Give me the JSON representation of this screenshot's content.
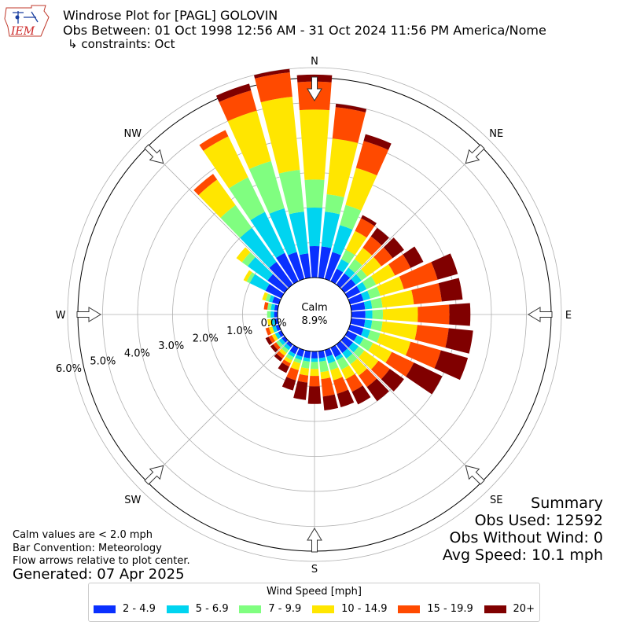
{
  "header": {
    "title": "Windrose Plot for [PAGL] GOLOVIN",
    "obs_between": "Obs Between: 01 Oct 1998 12:56 AM - 31 Oct 2024 11:56 PM America/Nome",
    "constraints": "↳ constraints: Oct",
    "logo_text": "IEM"
  },
  "footer": {
    "calm_note": "Calm values are < 2.0 mph",
    "bar_convention": "Bar Convention: Meteorology",
    "flow_note": "Flow arrows relative to plot center.",
    "generated": "Generated: 07 Apr 2025"
  },
  "summary": {
    "title": "Summary",
    "obs_used": "Obs Used: 12592",
    "obs_without_wind": "Obs Without Wind: 0",
    "avg_speed": "Avg Speed: 10.1 mph"
  },
  "center": {
    "label": "Calm",
    "value": "8.9%"
  },
  "colors": {
    "bins": [
      "#0a30ff",
      "#00d4f0",
      "#80fe80",
      "#ffe600",
      "#ff4a00",
      "#800000"
    ],
    "grid": "#b0b0b0",
    "outline": "#000000"
  },
  "chart_data": {
    "type": "windrose",
    "title": "Windrose Plot for [PAGL] GOLOVIN",
    "direction_labels": [
      "N",
      "NE",
      "E",
      "SE",
      "S",
      "SW",
      "W",
      "NW"
    ],
    "radial_tick_labels": [
      "0.0%",
      "1.0%",
      "2.0%",
      "3.0%",
      "4.0%",
      "5.0%",
      "6.0%"
    ],
    "radial_range": [
      0,
      6.5
    ],
    "grid": true,
    "legend_title": "Wind Speed [mph]",
    "legend_placement": "bottom-center",
    "speed_bins": [
      "2 - 4.9",
      "5 - 6.9",
      "7 - 9.9",
      "10 - 14.9",
      "15 - 19.9",
      "20+"
    ],
    "directions_deg": [
      0,
      10,
      20,
      30,
      40,
      50,
      60,
      70,
      80,
      90,
      100,
      110,
      120,
      130,
      140,
      150,
      160,
      170,
      180,
      190,
      200,
      210,
      220,
      230,
      240,
      250,
      260,
      270,
      280,
      290,
      300,
      310,
      320,
      330,
      340,
      350
    ],
    "cumulative_pct": [
      [
        0.9,
        2.0,
        2.8,
        4.8,
        5.6,
        5.8
      ],
      [
        0.9,
        1.9,
        2.4,
        4.0,
        4.9,
        5.0
      ],
      [
        0.8,
        1.6,
        2.2,
        3.3,
        4.1,
        4.3
      ],
      [
        0.4,
        0.7,
        1.0,
        1.6,
        2.0,
        2.1
      ],
      [
        0.4,
        0.6,
        0.9,
        1.3,
        1.7,
        2.0
      ],
      [
        0.4,
        0.6,
        0.8,
        1.3,
        1.7,
        2.1
      ],
      [
        0.4,
        0.6,
        0.9,
        1.5,
        2.0,
        2.4
      ],
      [
        0.4,
        0.6,
        0.9,
        1.6,
        2.6,
        3.2
      ],
      [
        0.4,
        0.6,
        0.9,
        1.8,
        2.6,
        3.2
      ],
      [
        0.4,
        0.6,
        0.9,
        1.9,
        2.8,
        3.4
      ],
      [
        0.4,
        0.6,
        0.9,
        1.9,
        2.8,
        3.5
      ],
      [
        0.4,
        0.6,
        0.9,
        1.8,
        2.7,
        3.5
      ],
      [
        0.3,
        0.5,
        0.8,
        1.4,
        2.1,
        3.0
      ],
      [
        0.3,
        0.5,
        0.7,
        1.2,
        1.6,
        2.1
      ],
      [
        0.3,
        0.5,
        0.7,
        1.1,
        1.5,
        2.0
      ],
      [
        0.3,
        0.4,
        0.7,
        1.0,
        1.4,
        1.8
      ],
      [
        0.2,
        0.4,
        0.6,
        0.9,
        1.3,
        1.7
      ],
      [
        0.2,
        0.3,
        0.6,
        0.8,
        1.3,
        1.7
      ],
      [
        0.2,
        0.3,
        0.5,
        0.7,
        1.0,
        1.5
      ],
      [
        0.2,
        0.3,
        0.5,
        0.7,
        0.9,
        1.4
      ],
      [
        0.2,
        0.3,
        0.4,
        0.6,
        0.9,
        1.2
      ],
      [
        0.2,
        0.3,
        0.4,
        0.5,
        0.6,
        0.8
      ],
      [
        0.1,
        0.2,
        0.3,
        0.4,
        0.5,
        0.6
      ],
      [
        0.1,
        0.2,
        0.3,
        0.3,
        0.4,
        0.5
      ],
      [
        0.1,
        0.2,
        0.2,
        0.3,
        0.4,
        0.5
      ],
      [
        0.1,
        0.2,
        0.2,
        0.3,
        0.4,
        0.4
      ],
      [
        0.1,
        0.2,
        0.2,
        0.3,
        0.3,
        0.3
      ],
      [
        0.1,
        0.2,
        0.3,
        0.3,
        0.3,
        0.3
      ],
      [
        0.1,
        0.2,
        0.3,
        0.3,
        0.4,
        0.4
      ],
      [
        0.2,
        0.3,
        0.4,
        0.5,
        0.5,
        0.5
      ],
      [
        0.5,
        1.0,
        1.1,
        1.2,
        1.2,
        1.2
      ],
      [
        0.6,
        1.3,
        1.5,
        1.7,
        1.7,
        1.7
      ],
      [
        0.8,
        2.0,
        2.8,
        3.7,
        3.9,
        3.9
      ],
      [
        0.9,
        2.2,
        3.3,
        4.6,
        4.8,
        4.8
      ],
      [
        0.8,
        2.1,
        3.5,
        5.0,
        5.6,
        5.8
      ],
      [
        0.7,
        1.9,
        3.1,
        5.2,
        5.9,
        6.0
      ]
    ]
  }
}
